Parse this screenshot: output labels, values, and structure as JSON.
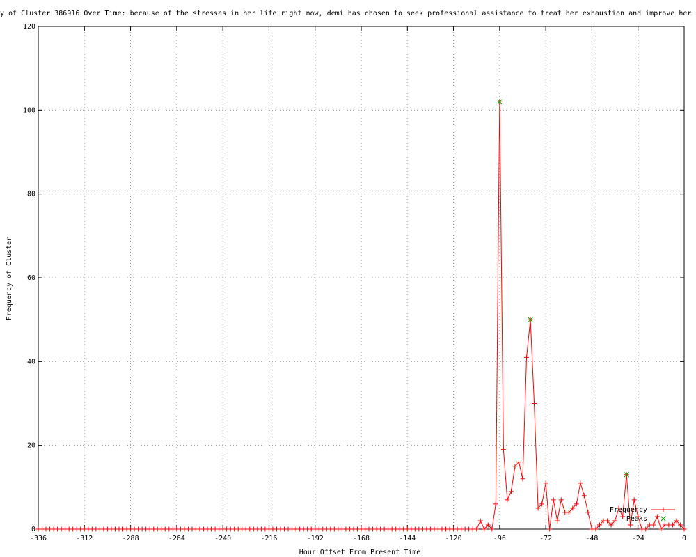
{
  "chart_data": {
    "type": "line",
    "title": "y of Cluster 386916 Over Time: because of the stresses in her life right now, demi has chosen to seek professional assistance to treat her exhaustion and improve her c",
    "x_label": "Hour Offset From Present Time",
    "y_label": "Frequency of Cluster",
    "x": [
      -336,
      -334,
      -332,
      -330,
      -328,
      -326,
      -324,
      -322,
      -320,
      -318,
      -316,
      -314,
      -312,
      -310,
      -308,
      -306,
      -304,
      -302,
      -300,
      -298,
      -296,
      -294,
      -292,
      -290,
      -288,
      -286,
      -284,
      -282,
      -280,
      -278,
      -276,
      -274,
      -272,
      -270,
      -268,
      -266,
      -264,
      -262,
      -260,
      -258,
      -256,
      -254,
      -252,
      -250,
      -248,
      -246,
      -244,
      -242,
      -240,
      -238,
      -236,
      -234,
      -232,
      -230,
      -228,
      -226,
      -224,
      -222,
      -220,
      -218,
      -216,
      -214,
      -212,
      -210,
      -208,
      -206,
      -204,
      -202,
      -200,
      -198,
      -196,
      -194,
      -192,
      -190,
      -188,
      -186,
      -184,
      -182,
      -180,
      -178,
      -176,
      -174,
      -172,
      -170,
      -168,
      -166,
      -164,
      -162,
      -160,
      -158,
      -156,
      -154,
      -152,
      -150,
      -148,
      -146,
      -144,
      -142,
      -140,
      -138,
      -136,
      -134,
      -132,
      -130,
      -128,
      -126,
      -124,
      -122,
      -120,
      -118,
      -116,
      -114,
      -112,
      -110,
      -108,
      -106,
      -104,
      -102,
      -100,
      -98,
      -96,
      -94,
      -92,
      -90,
      -88,
      -86,
      -84,
      -82,
      -80,
      -78,
      -76,
      -74,
      -72,
      -70,
      -68,
      -66,
      -64,
      -62,
      -60,
      -58,
      -56,
      -54,
      -52,
      -50,
      -48,
      -46,
      -44,
      -42,
      -40,
      -38,
      -36,
      -34,
      -32,
      -30,
      -28,
      -26,
      -24,
      -22,
      -20,
      -18,
      -16,
      -14,
      -12,
      -10,
      -8,
      -6,
      -4,
      -2,
      0
    ],
    "series": [
      {
        "name": "Frequency",
        "color": "#ff0000",
        "marker": "plus",
        "values": [
          0,
          0,
          0,
          0,
          0,
          0,
          0,
          0,
          0,
          0,
          0,
          0,
          0,
          0,
          0,
          0,
          0,
          0,
          0,
          0,
          0,
          0,
          0,
          0,
          0,
          0,
          0,
          0,
          0,
          0,
          0,
          0,
          0,
          0,
          0,
          0,
          0,
          0,
          0,
          0,
          0,
          0,
          0,
          0,
          0,
          0,
          0,
          0,
          0,
          0,
          0,
          0,
          0,
          0,
          0,
          0,
          0,
          0,
          0,
          0,
          0,
          0,
          0,
          0,
          0,
          0,
          0,
          0,
          0,
          0,
          0,
          0,
          0,
          0,
          0,
          0,
          0,
          0,
          0,
          0,
          0,
          0,
          0,
          0,
          0,
          0,
          0,
          0,
          0,
          0,
          0,
          0,
          0,
          0,
          0,
          0,
          0,
          0,
          0,
          0,
          0,
          0,
          0,
          0,
          0,
          0,
          0,
          0,
          0,
          0,
          0,
          0,
          0,
          0,
          0,
          2,
          0,
          1,
          0,
          6,
          102,
          19,
          7,
          9,
          15,
          16,
          12,
          41,
          50,
          30,
          5,
          6,
          11,
          0,
          7,
          2,
          7,
          4,
          4,
          5,
          6,
          11,
          8,
          4,
          0,
          0,
          1,
          2,
          2,
          1,
          2,
          5,
          3,
          13,
          1,
          7,
          3,
          0,
          0,
          1,
          1,
          3,
          0,
          1,
          1,
          1,
          2,
          1,
          0
        ]
      },
      {
        "name": "Peaks",
        "color": "#00a000",
        "marker": "x",
        "x": [
          -96,
          -80,
          -30
        ],
        "values": [
          102,
          50,
          13
        ]
      }
    ],
    "xlim": [
      -336,
      0
    ],
    "xticks": [
      -336,
      -312,
      -288,
      -264,
      -240,
      -216,
      -192,
      -168,
      -144,
      -120,
      -96,
      -72,
      -48,
      -24,
      0
    ],
    "ylim": [
      0,
      120
    ],
    "yticks": [
      0,
      20,
      40,
      60,
      80,
      100,
      120
    ],
    "grid": true,
    "legend": "bottom-right"
  }
}
